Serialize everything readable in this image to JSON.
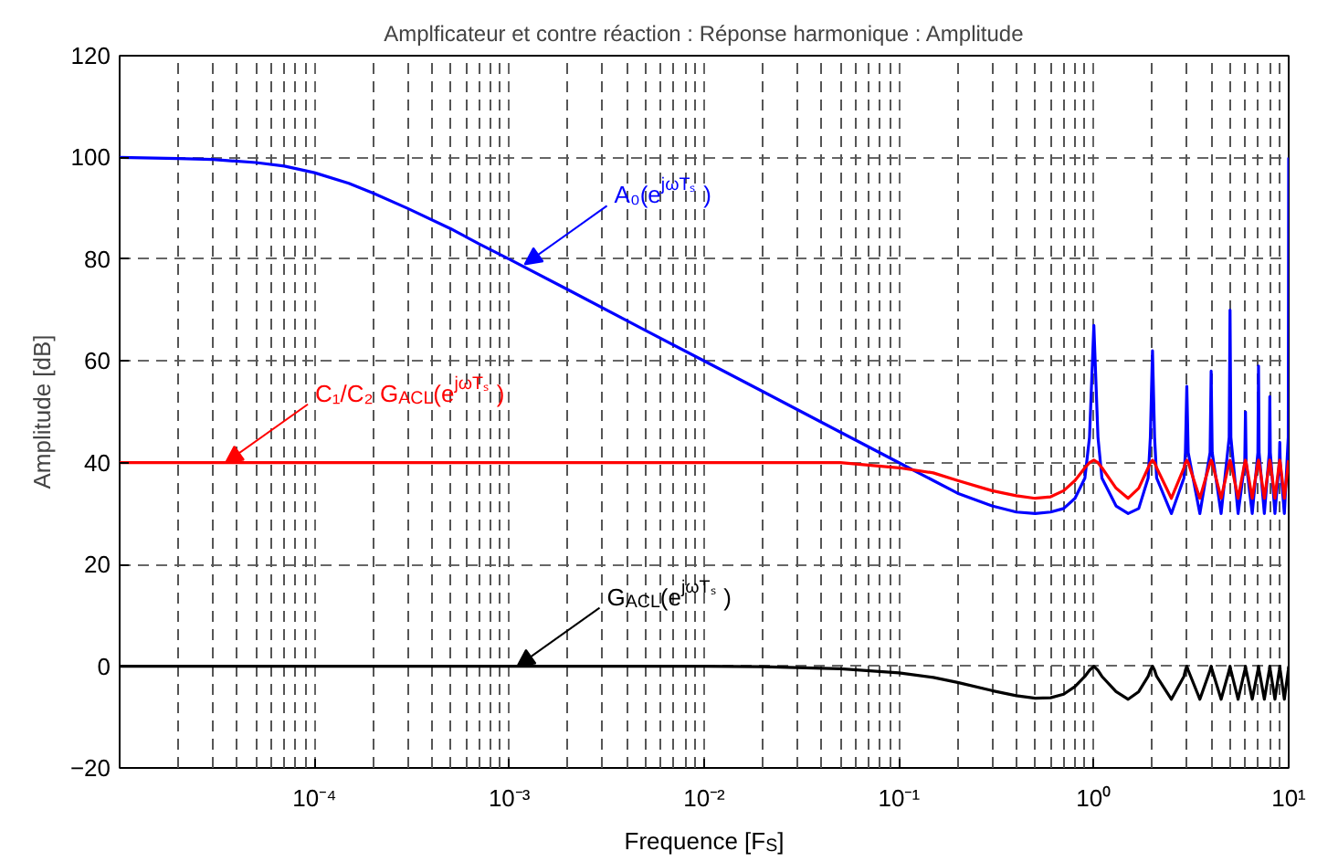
{
  "chart_data": {
    "type": "line",
    "title": "Amplficateur et contre réaction : Réponse harmonique : Amplitude",
    "xlabel": "Frequence [F$_{S}$]",
    "ylabel": "Amplitude [dB]",
    "log": "x",
    "grid": true,
    "line_style": "solid",
    "marker": "none",
    "xlim": [
      1e-05,
      10
    ],
    "ylim": [
      -20,
      120
    ],
    "xticks": [
      {
        "value": 0.0001,
        "label": "10⁻⁴"
      },
      {
        "value": 0.001,
        "label": "10⁻³"
      },
      {
        "value": 0.01,
        "label": "10⁻²"
      },
      {
        "value": 0.1,
        "label": "10⁻¹"
      },
      {
        "value": 1,
        "label": "10⁰"
      },
      {
        "value": 10,
        "label": "10¹"
      }
    ],
    "yticks": [
      -20,
      0,
      20,
      40,
      60,
      80,
      100,
      120
    ],
    "x": [
      1e-05,
      2e-05,
      3e-05,
      5e-05,
      7e-05,
      0.0001,
      0.00015,
      0.0002,
      0.0003,
      0.0005,
      0.0007,
      0.001,
      0.002,
      0.005,
      0.01,
      0.02,
      0.05,
      0.1,
      0.15,
      0.2,
      0.3,
      0.4,
      0.5,
      0.6,
      0.7,
      0.8,
      0.9,
      0.95,
      1,
      1.05,
      1.1,
      1.3,
      1.5,
      1.7,
      1.9,
      1.95,
      2,
      2.05,
      2.1,
      2.5,
      2.9,
      2.95,
      3,
      3.05,
      3.5,
      3.95,
      4,
      4.05,
      4.5,
      4.95,
      5,
      5.05,
      5.5,
      5.95,
      6,
      6.05,
      6.5,
      6.95,
      7,
      7.05,
      7.5,
      7.95,
      8,
      8.05,
      8.5,
      8.95,
      9,
      9.05,
      9.5,
      9.95,
      10
    ],
    "series": [
      {
        "color": "#0000ff",
        "values": [
          100,
          99.8,
          99.6,
          99,
          98.3,
          97,
          94.9,
          93,
          90,
          86,
          83,
          80,
          74,
          66,
          60,
          54,
          46,
          40,
          36.5,
          34,
          31.5,
          30.3,
          30,
          30.3,
          31,
          33,
          37,
          45,
          67,
          45,
          37,
          31.5,
          30,
          31,
          37,
          45,
          62,
          45,
          37,
          30,
          37,
          42,
          55,
          42,
          30,
          42,
          58,
          42,
          30,
          45,
          70,
          45,
          30,
          40,
          50,
          40,
          30,
          42,
          59,
          42,
          30,
          42,
          53,
          42,
          30,
          40,
          44,
          40,
          30,
          45,
          100
        ]
      },
      {
        "color": "#ff0000",
        "values": [
          40,
          40,
          40,
          40,
          40,
          40,
          40,
          40,
          40,
          40,
          40,
          40,
          40,
          40,
          40,
          40,
          40,
          39,
          38,
          36.5,
          34.5,
          33.5,
          33,
          33.3,
          34.5,
          36.5,
          39,
          40,
          40.5,
          40,
          39,
          35,
          33,
          35,
          39,
          40,
          40.5,
          40,
          39,
          33,
          39,
          40,
          40.5,
          40,
          33,
          40,
          40.5,
          40,
          33,
          40,
          40.5,
          40,
          33,
          40,
          40.5,
          40,
          33,
          40,
          40.5,
          40,
          33,
          40,
          40.5,
          40,
          33,
          40,
          40.5,
          40,
          33,
          40,
          40.5
        ]
      },
      {
        "color": "#000000",
        "values": [
          0,
          0,
          0,
          0,
          0,
          0,
          0,
          0,
          0,
          0,
          0,
          0,
          0,
          0,
          0,
          -0.1,
          -0.5,
          -1.3,
          -2.2,
          -3.2,
          -4.8,
          -5.8,
          -6.3,
          -6.2,
          -5.5,
          -4,
          -2,
          -0.8,
          0,
          -0.8,
          -2,
          -5,
          -6.5,
          -5,
          -2,
          -0.8,
          0,
          -0.8,
          -2,
          -6.5,
          -2,
          -0.8,
          0,
          -0.8,
          -6.5,
          -0.8,
          0,
          -0.8,
          -6.5,
          -0.8,
          0,
          -0.8,
          -6.5,
          -0.8,
          0,
          -0.8,
          -6.5,
          -0.8,
          0,
          -0.8,
          -6.5,
          -0.8,
          0,
          -0.8,
          -6.5,
          -0.8,
          0,
          -0.8,
          -6.5,
          -0.8,
          0
        ]
      }
    ],
    "annotations": [
      {
        "text": "A₀(e$^{jωTₛ}$)",
        "x": 0.0012,
        "y": 79
      },
      {
        "text": "C₁/C₂ G$_{ACL}$(e$^{jωTₛ}$)",
        "x": 3.5e-05,
        "y": 40
      },
      {
        "text": "G$_{ACL}$(e$^{jωTₛ}$)",
        "x": 0.0011,
        "y": 0
      }
    ]
  }
}
